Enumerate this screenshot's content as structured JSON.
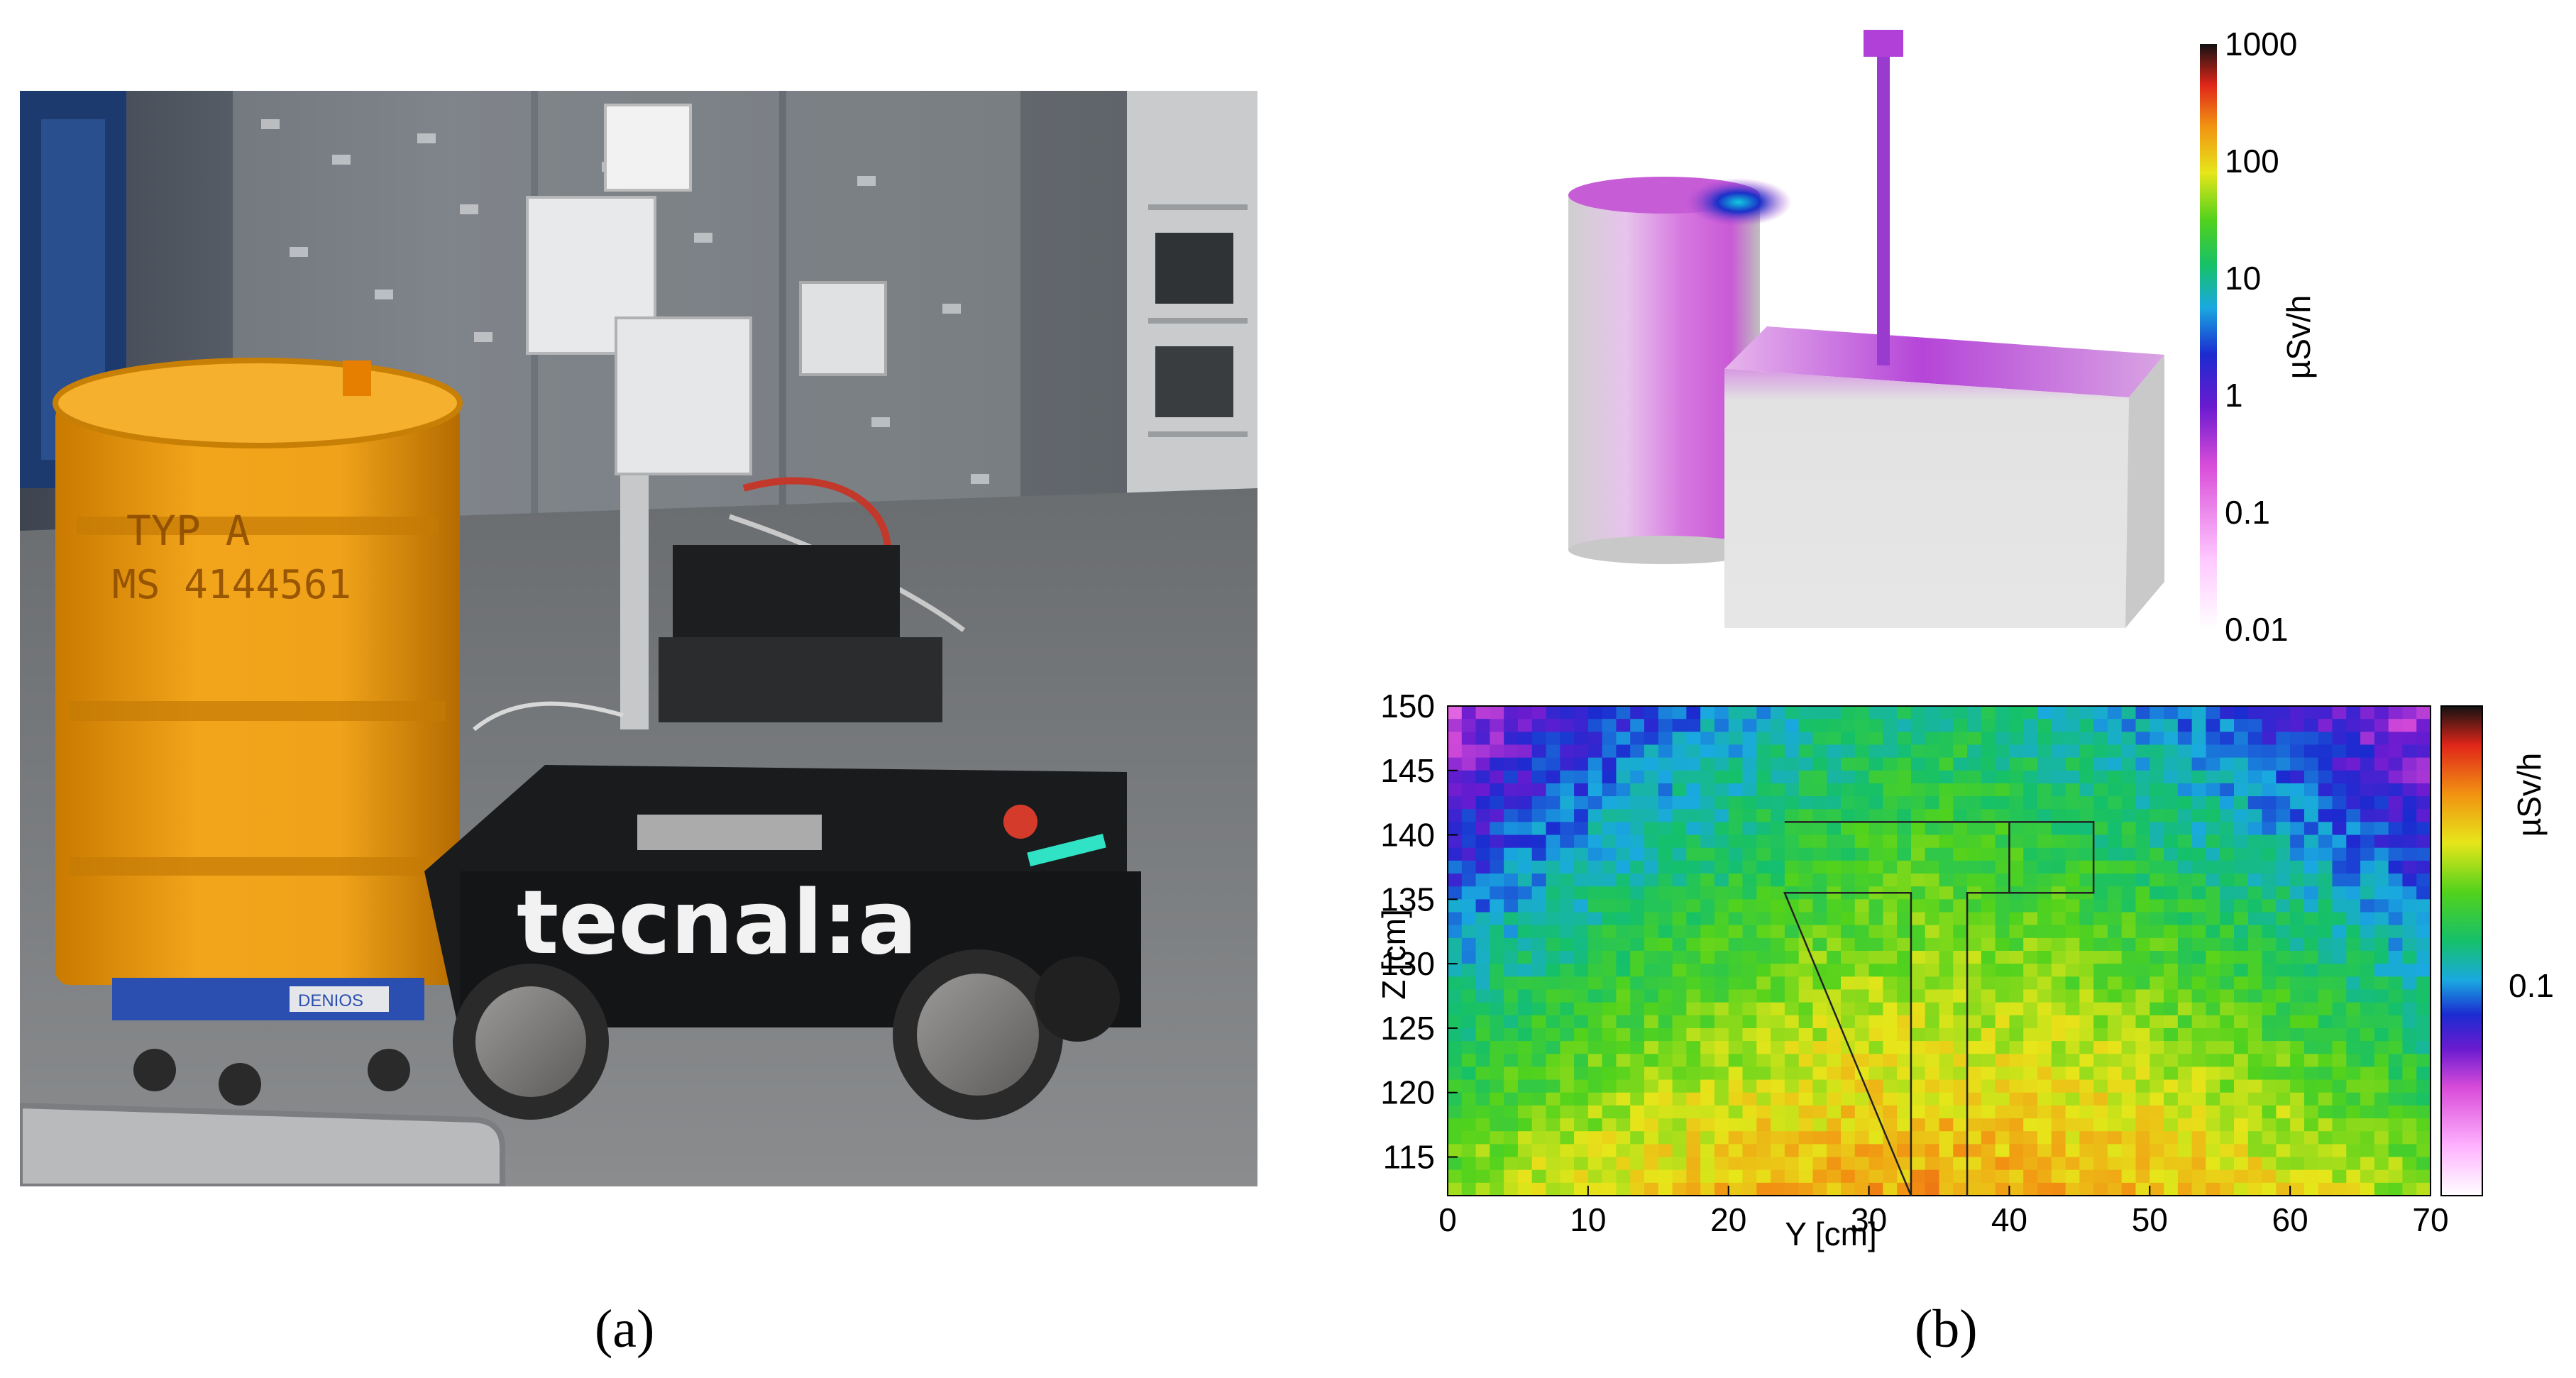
{
  "figure": {
    "panel_a_label": "(a)",
    "panel_b_label": "(b)"
  },
  "photo": {
    "drum_text_line1": "TYP A",
    "drum_text_line2": "MS 4144561",
    "robot_logo": "tecnal:a",
    "dolly_label": "DENIOS"
  },
  "colorbar_3d": {
    "unit": "µSv/h",
    "ticks": [
      "1000",
      "100",
      "10",
      "1",
      "0.1",
      "0.01"
    ]
  },
  "chart_data": {
    "type": "heatmap",
    "title": "",
    "xlabel": "Y [cm]",
    "ylabel": "Z [cm]",
    "xlim": [
      0,
      70
    ],
    "ylim": [
      112,
      150
    ],
    "xticks": [
      "0",
      "10",
      "20",
      "30",
      "40",
      "50",
      "60",
      "70"
    ],
    "yticks": [
      "150",
      "145",
      "140",
      "135",
      "130",
      "125",
      "120",
      "115"
    ],
    "colorbar": {
      "unit": "µSv/h",
      "tick_label": "0.1",
      "scale": "log"
    },
    "description_values": {
      "z_profile_center_yellow_bottom": "higher dose near bottom center",
      "top_region": "lower dose (green/cyan)"
    },
    "overlay_outline": {
      "t_top_y": [
        24,
        46
      ],
      "t_top_z": [
        135.5,
        141
      ],
      "t_stem_y": [
        33,
        37
      ],
      "t_stem_z": [
        112,
        135.5
      ],
      "inner_divider_y": 40
    }
  }
}
